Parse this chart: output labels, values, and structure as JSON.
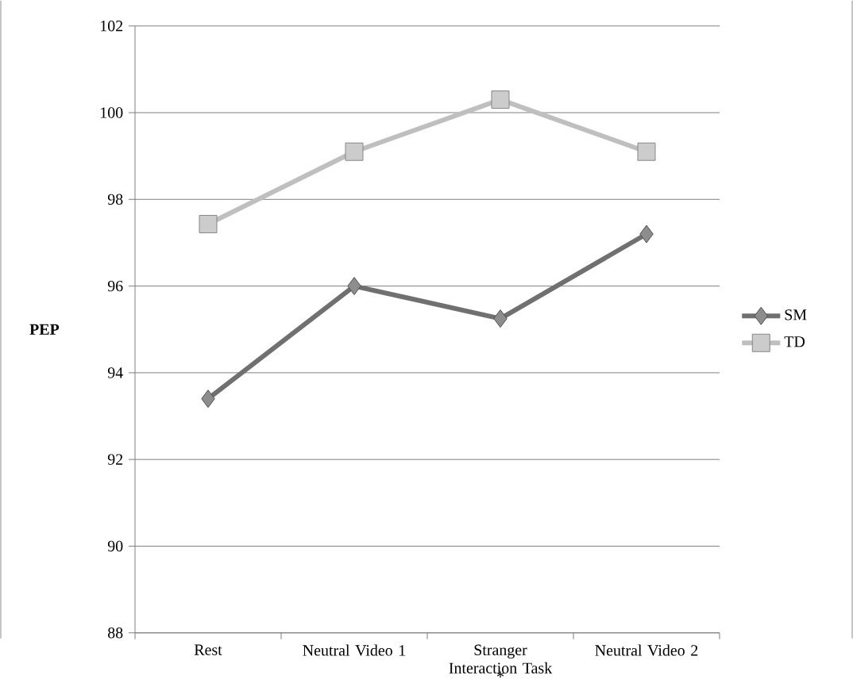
{
  "chart_data": {
    "type": "line",
    "ylabel": "PEP",
    "categories": [
      "Rest",
      "Neutral Video 1",
      "Stranger Interaction Task",
      "Neutral Video 2"
    ],
    "series": [
      {
        "name": "SM",
        "color": "#707070",
        "marker": "diamond",
        "values": [
          93.4,
          96.0,
          95.25,
          97.2
        ]
      },
      {
        "name": "TD",
        "color": "#bfbfbf",
        "marker": "square",
        "values": [
          97.43,
          99.1,
          100.3,
          99.1
        ]
      }
    ],
    "ylim": [
      88,
      102
    ],
    "yticks": [
      88,
      90,
      92,
      94,
      96,
      98,
      100,
      102
    ],
    "grid": "y",
    "legend": "right",
    "annotations": [
      "*"
    ]
  }
}
